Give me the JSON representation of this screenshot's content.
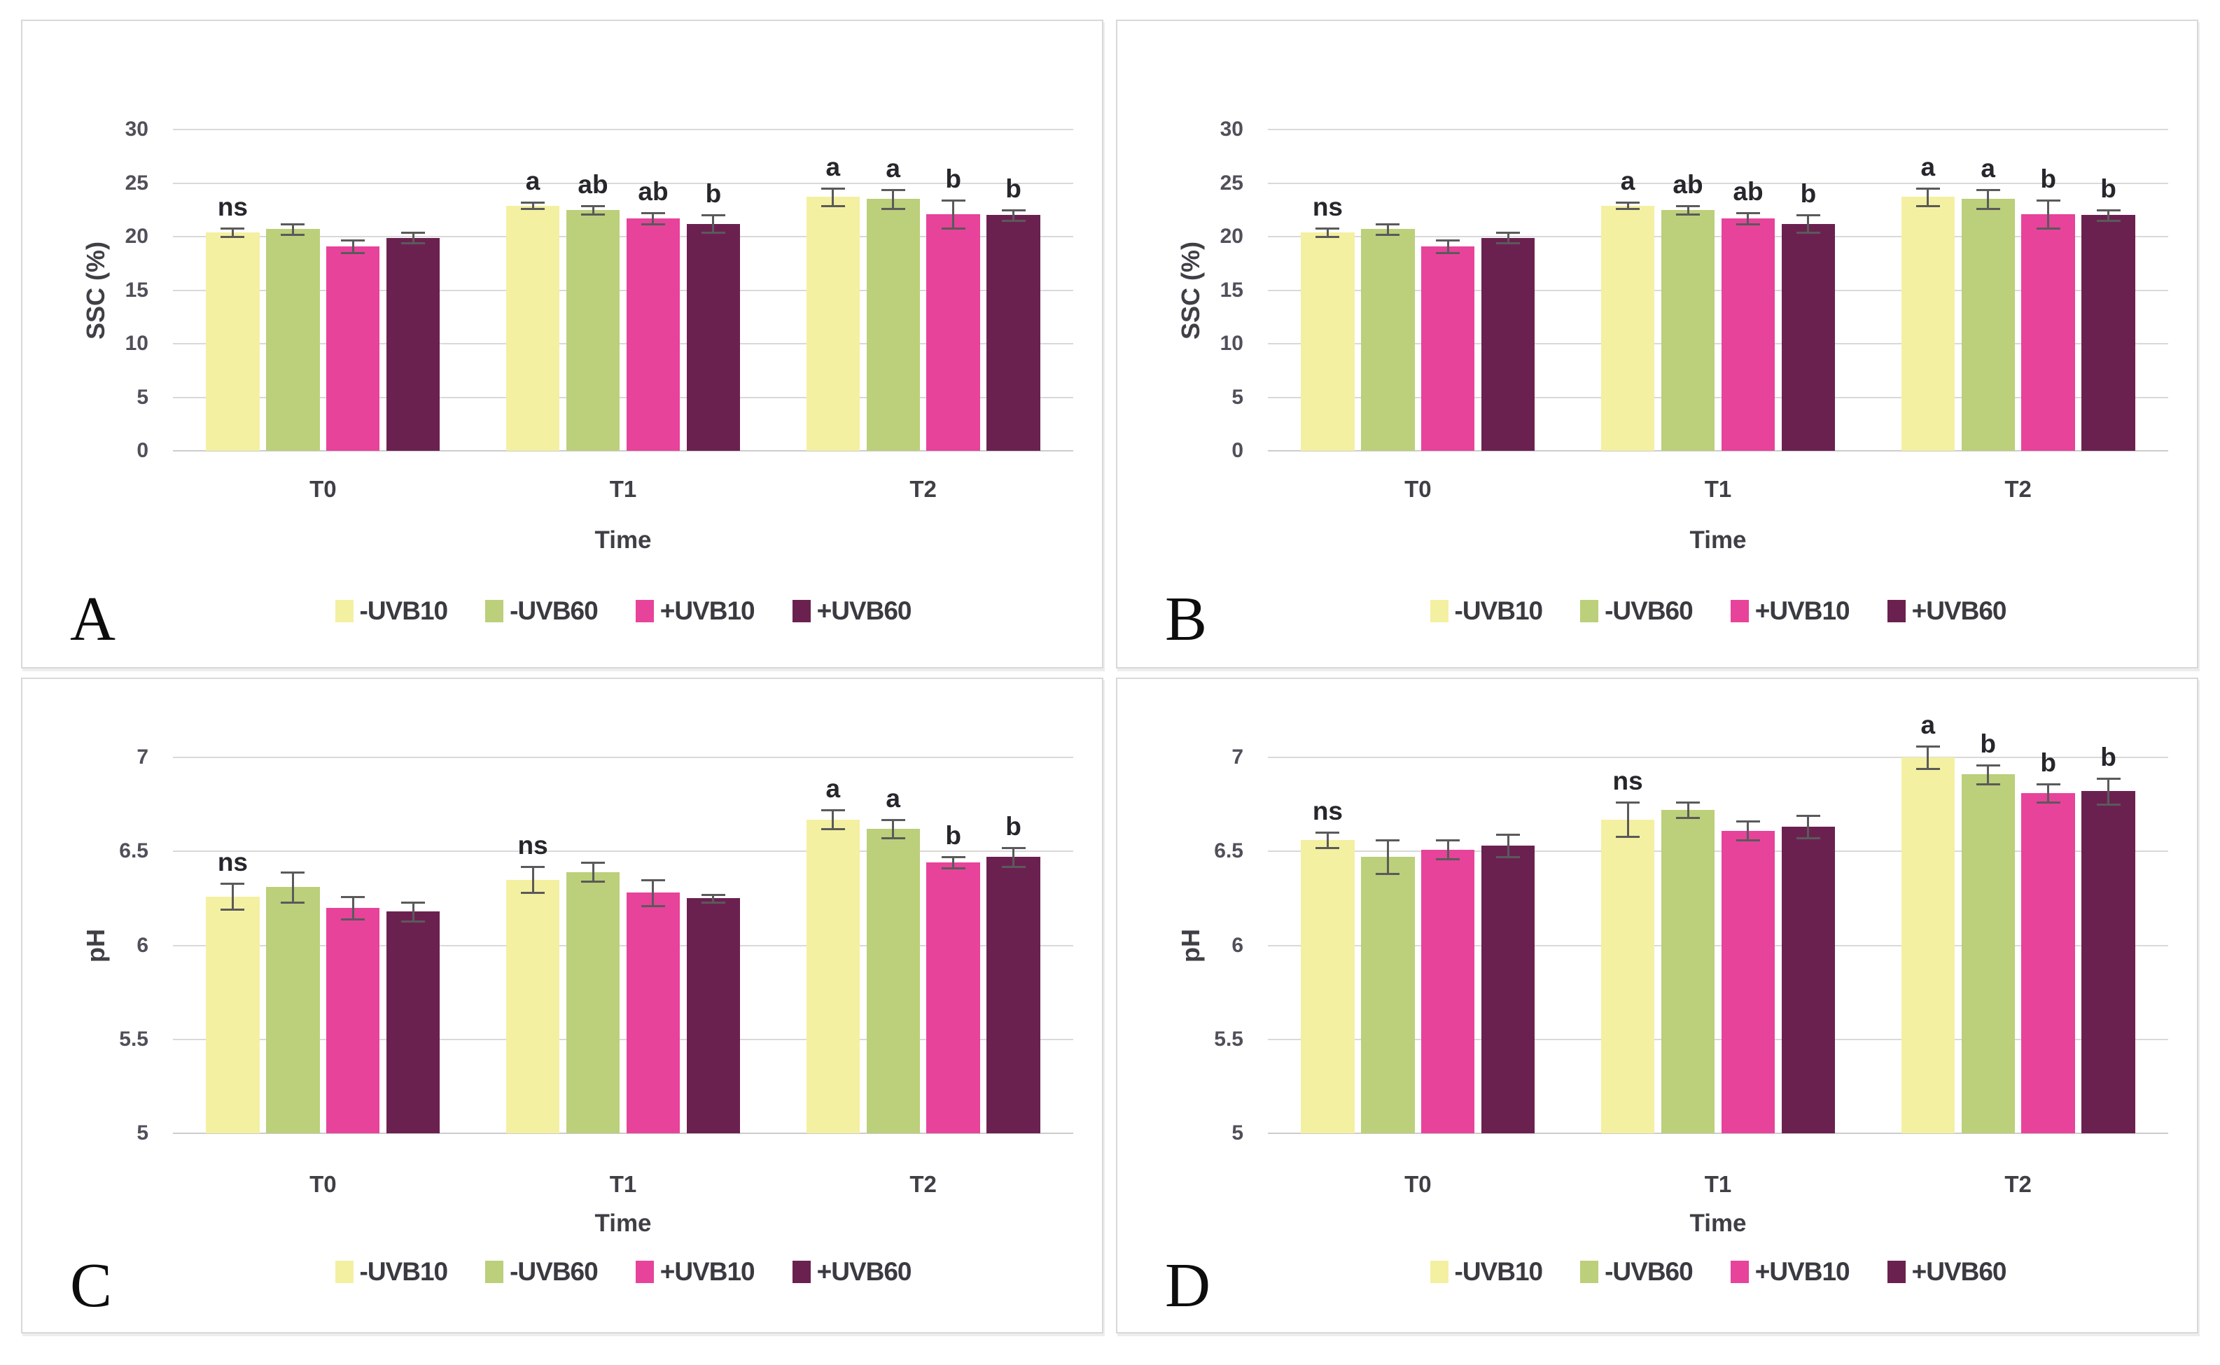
{
  "figure": {
    "panel_labels": [
      "A",
      "B",
      "C",
      "D"
    ],
    "legend": {
      "items": [
        {
          "label": "-UVB10",
          "color": "#f4f0a1"
        },
        {
          "label": "-UVB60",
          "color": "#bccf7a"
        },
        {
          "label": "+UVB10",
          "color": "#e7439b"
        },
        {
          "label": "+UVB60",
          "color": "#6b2150"
        }
      ]
    },
    "colors": {
      "grid": "#d9d9d9",
      "error_bar": "#5a5a5a",
      "tick_text": "#50505a",
      "title_text": "#3f3f46",
      "sig_text": "#26262c",
      "panel_border": "#d8d8d8",
      "background": "#ffffff"
    }
  },
  "chart_data": [
    {
      "panel": "A",
      "type": "bar",
      "title": "",
      "xlabel": "Time",
      "ylabel": "SSC (%)",
      "ylim": [
        0,
        30
      ],
      "yticks": [
        30,
        25,
        20,
        15,
        10,
        5,
        0
      ],
      "ytick_labels": [
        "30",
        "25",
        "20",
        "15",
        "10",
        "5",
        "0"
      ],
      "categories": [
        "T0",
        "T1",
        "T2"
      ],
      "grid": true,
      "legend_position": "bottom",
      "series": [
        {
          "name": "-UVB10",
          "color": "#f4f0a1",
          "values": [
            20.4,
            22.9,
            23.7
          ],
          "errors": [
            0.4,
            0.3,
            0.8
          ]
        },
        {
          "name": "-UVB60",
          "color": "#bccf7a",
          "values": [
            20.7,
            22.5,
            23.5
          ],
          "errors": [
            0.5,
            0.4,
            0.9
          ]
        },
        {
          "name": "+UVB10",
          "color": "#e7439b",
          "values": [
            19.1,
            21.7,
            22.1
          ],
          "errors": [
            0.6,
            0.5,
            1.3
          ]
        },
        {
          "name": "+UVB60",
          "color": "#6b2150",
          "values": [
            19.9,
            21.2,
            22.0
          ],
          "errors": [
            0.5,
            0.8,
            0.5
          ]
        }
      ],
      "sig": [
        [
          "ns",
          "",
          "",
          ""
        ],
        [
          "a",
          "ab",
          "ab",
          "b"
        ],
        [
          "a",
          "a",
          "b",
          "b"
        ]
      ]
    },
    {
      "panel": "B",
      "type": "bar",
      "title": "",
      "xlabel": "Time",
      "ylabel": "SSC (%)",
      "ylim": [
        0,
        30
      ],
      "yticks": [
        30,
        25,
        20,
        15,
        10,
        5,
        0
      ],
      "ytick_labels": [
        "30",
        "25",
        "20",
        "15",
        "10",
        "5",
        "0"
      ],
      "categories": [
        "T0",
        "T1",
        "T2"
      ],
      "grid": true,
      "legend_position": "bottom",
      "series": [
        {
          "name": "-UVB10",
          "color": "#f4f0a1",
          "values": [
            20.4,
            22.9,
            23.7
          ],
          "errors": [
            0.4,
            0.3,
            0.8
          ]
        },
        {
          "name": "-UVB60",
          "color": "#bccf7a",
          "values": [
            20.7,
            22.5,
            23.5
          ],
          "errors": [
            0.5,
            0.4,
            0.9
          ]
        },
        {
          "name": "+UVB10",
          "color": "#e7439b",
          "values": [
            19.1,
            21.7,
            22.1
          ],
          "errors": [
            0.6,
            0.5,
            1.3
          ]
        },
        {
          "name": "+UVB60",
          "color": "#6b2150",
          "values": [
            19.9,
            21.2,
            22.0
          ],
          "errors": [
            0.5,
            0.8,
            0.5
          ]
        }
      ],
      "sig": [
        [
          "ns",
          "",
          "",
          ""
        ],
        [
          "a",
          "ab",
          "ab",
          "b"
        ],
        [
          "a",
          "a",
          "b",
          "b"
        ]
      ]
    },
    {
      "panel": "C",
      "type": "bar",
      "title": "",
      "xlabel": "Time",
      "ylabel": "pH",
      "ylim": [
        5,
        7
      ],
      "yticks": [
        7,
        6.5,
        6,
        5.5,
        5
      ],
      "ytick_labels": [
        "7",
        "6.5",
        "6",
        "5.5",
        "5"
      ],
      "categories": [
        "T0",
        "T1",
        "T2"
      ],
      "grid": true,
      "legend_position": "bottom",
      "series": [
        {
          "name": "-UVB10",
          "color": "#f4f0a1",
          "values": [
            6.26,
            6.35,
            6.67
          ],
          "errors": [
            0.07,
            0.07,
            0.05
          ]
        },
        {
          "name": "-UVB60",
          "color": "#bccf7a",
          "values": [
            6.31,
            6.39,
            6.62
          ],
          "errors": [
            0.08,
            0.05,
            0.05
          ]
        },
        {
          "name": "+UVB10",
          "color": "#e7439b",
          "values": [
            6.2,
            6.28,
            6.44
          ],
          "errors": [
            0.06,
            0.07,
            0.03
          ]
        },
        {
          "name": "+UVB60",
          "color": "#6b2150",
          "values": [
            6.18,
            6.25,
            6.47
          ],
          "errors": [
            0.05,
            0.02,
            0.05
          ]
        }
      ],
      "sig": [
        [
          "ns",
          "",
          "",
          ""
        ],
        [
          "ns",
          "",
          "",
          ""
        ],
        [
          "a",
          "a",
          "b",
          "b"
        ]
      ]
    },
    {
      "panel": "D",
      "type": "bar",
      "title": "",
      "xlabel": "Time",
      "ylabel": "pH",
      "ylim": [
        5,
        7
      ],
      "yticks": [
        7,
        6.5,
        6,
        5.5,
        5
      ],
      "ytick_labels": [
        "7",
        "6.5",
        "6",
        "5.5",
        "5"
      ],
      "categories": [
        "T0",
        "T1",
        "T2"
      ],
      "grid": true,
      "legend_position": "bottom",
      "series": [
        {
          "name": "-UVB10",
          "color": "#f4f0a1",
          "values": [
            6.56,
            6.67,
            7.0
          ],
          "errors": [
            0.04,
            0.09,
            0.06
          ]
        },
        {
          "name": "-UVB60",
          "color": "#bccf7a",
          "values": [
            6.47,
            6.72,
            6.91
          ],
          "errors": [
            0.09,
            0.04,
            0.05
          ]
        },
        {
          "name": "+UVB10",
          "color": "#e7439b",
          "values": [
            6.51,
            6.61,
            6.81
          ],
          "errors": [
            0.05,
            0.05,
            0.05
          ]
        },
        {
          "name": "+UVB60",
          "color": "#6b2150",
          "values": [
            6.53,
            6.63,
            6.82
          ],
          "errors": [
            0.06,
            0.06,
            0.07
          ]
        }
      ],
      "sig": [
        [
          "ns",
          "",
          "",
          ""
        ],
        [
          "ns",
          "",
          "",
          ""
        ],
        [
          "a",
          "b",
          "b",
          "b"
        ]
      ]
    }
  ]
}
